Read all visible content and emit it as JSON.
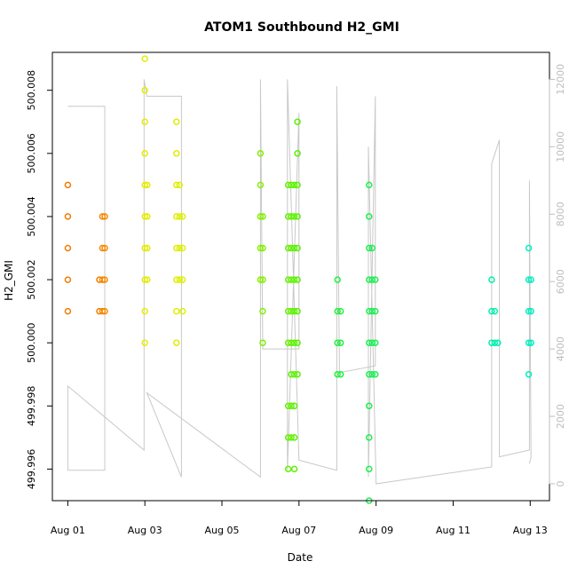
{
  "chart_data": {
    "type": "scatter",
    "title": "ATOM1 Southbound H2_GMI",
    "xlabel": "Date",
    "ylabel": "H2_GMI",
    "x_ticks": [
      "Aug 01",
      "Aug 03",
      "Aug 05",
      "Aug 07",
      "Aug 09",
      "Aug 11",
      "Aug 13"
    ],
    "x_tick_days": [
      1,
      3,
      5,
      7,
      9,
      11,
      13
    ],
    "xlim_days": [
      0.6,
      13.5
    ],
    "ylim": [
      499.995,
      500.0092
    ],
    "y_ticks": [
      "499.996",
      "499.998",
      "500.000",
      "500.002",
      "500.004",
      "500.006",
      "500.008"
    ],
    "y_tick_values": [
      499.996,
      499.998,
      500.0,
      500.002,
      500.004,
      500.006,
      500.008
    ],
    "y2_ticks": [
      "0",
      "2000",
      "4000",
      "6000",
      "8000",
      "10000",
      "12000"
    ],
    "y2_tick_values": [
      0,
      2000,
      4000,
      6000,
      8000,
      10000,
      12000
    ],
    "y2lim": [
      -500,
      12800
    ],
    "y2_color": "#bdbdbd",
    "grid": false,
    "point_groups": [
      {
        "day": 1.0,
        "color": "#f07b00",
        "y": [
          500.001,
          500.002,
          500.003,
          500.004,
          500.005
        ]
      },
      {
        "day": 1.82,
        "color": "#f07b00",
        "y": [
          500.001,
          500.002
        ]
      },
      {
        "day": 1.9,
        "color": "#f38a00",
        "y": [
          500.001,
          500.002,
          500.003,
          500.004
        ]
      },
      {
        "day": 1.96,
        "color": "#f38a00",
        "y": [
          500.001,
          500.002,
          500.003,
          500.004
        ]
      },
      {
        "day": 3.0,
        "color": "#e6ec00",
        "y": [
          500.0,
          500.001,
          500.002,
          500.003,
          500.004,
          500.005,
          500.006,
          500.007,
          500.008,
          500.009
        ]
      },
      {
        "day": 3.06,
        "color": "#e0ee00",
        "y": [
          500.002,
          500.003,
          500.004,
          500.005
        ]
      },
      {
        "day": 3.82,
        "color": "#e0ee00",
        "y": [
          500.0,
          500.001,
          500.002,
          500.003,
          500.004,
          500.005,
          500.006,
          500.007
        ]
      },
      {
        "day": 3.9,
        "color": "#dcf000",
        "y": [
          500.002,
          500.003,
          500.004,
          500.005
        ]
      },
      {
        "day": 3.98,
        "color": "#dcf000",
        "y": [
          500.001,
          500.002,
          500.003,
          500.004
        ]
      },
      {
        "day": 6.0,
        "color": "#88f000",
        "y": [
          500.002,
          500.003,
          500.004,
          500.005,
          500.006
        ]
      },
      {
        "day": 6.06,
        "color": "#80f000",
        "y": [
          500.0,
          500.001,
          500.002,
          500.003,
          500.004
        ]
      },
      {
        "day": 6.72,
        "color": "#66f200",
        "y": [
          499.996,
          499.997,
          499.998,
          500.0,
          500.001,
          500.002,
          500.003,
          500.004,
          500.005
        ]
      },
      {
        "day": 6.8,
        "color": "#62f200",
        "y": [
          499.997,
          499.998,
          499.999,
          500.0,
          500.001,
          500.002,
          500.003,
          500.004,
          500.005
        ]
      },
      {
        "day": 6.88,
        "color": "#5cf200",
        "y": [
          499.996,
          499.997,
          499.998,
          499.999,
          500.0,
          500.001,
          500.002,
          500.003,
          500.004,
          500.005
        ]
      },
      {
        "day": 6.96,
        "color": "#58f200",
        "y": [
          499.999,
          500.0,
          500.001,
          500.002,
          500.003,
          500.004,
          500.005,
          500.006,
          500.007
        ]
      },
      {
        "day": 8.0,
        "color": "#22f040",
        "y": [
          499.999,
          500.0,
          500.001,
          500.002
        ]
      },
      {
        "day": 8.08,
        "color": "#22f040",
        "y": [
          499.999,
          500.0,
          500.001
        ]
      },
      {
        "day": 8.82,
        "color": "#20ee50",
        "y": [
          499.995,
          499.996,
          499.997,
          499.998,
          499.999,
          500.0,
          500.001,
          500.002,
          500.003,
          500.004,
          500.005
        ]
      },
      {
        "day": 8.9,
        "color": "#1eee58",
        "y": [
          499.999,
          500.0,
          500.001,
          500.002,
          500.003
        ]
      },
      {
        "day": 8.98,
        "color": "#1eee58",
        "y": [
          499.999,
          500.0,
          500.001,
          500.002
        ]
      },
      {
        "day": 12.0,
        "color": "#00f0a8",
        "y": [
          500.0,
          500.001,
          500.002
        ]
      },
      {
        "day": 12.08,
        "color": "#00f0b0",
        "y": [
          500.0,
          500.001
        ]
      },
      {
        "day": 12.16,
        "color": "#00f0b0",
        "y": [
          500.0
        ]
      },
      {
        "day": 12.96,
        "color": "#00f0c0",
        "y": [
          499.999,
          500.0,
          500.001,
          500.002,
          500.003
        ]
      },
      {
        "day": 13.02,
        "color": "#00f0c0",
        "y": [
          500.0,
          500.001,
          500.002
        ]
      }
    ],
    "y2_trace": {
      "color": "#c8c8c8",
      "points": [
        [
          1.0,
          11200
        ],
        [
          1.96,
          11200
        ],
        [
          1.96,
          400
        ],
        [
          1.0,
          400
        ],
        [
          1.0,
          2900
        ],
        [
          2.98,
          1000
        ],
        [
          2.98,
          12000
        ],
        [
          3.05,
          11500
        ],
        [
          3.95,
          11500
        ],
        [
          3.95,
          200
        ],
        [
          3.05,
          2700
        ],
        [
          6.0,
          200
        ],
        [
          6.0,
          12000
        ],
        [
          6.06,
          4000
        ],
        [
          7.0,
          4000
        ],
        [
          7.0,
          11000
        ],
        [
          6.7,
          400
        ],
        [
          6.7,
          12000
        ],
        [
          7.0,
          700
        ],
        [
          7.98,
          400
        ],
        [
          7.98,
          11800
        ],
        [
          8.05,
          3300
        ],
        [
          8.98,
          3500
        ],
        [
          8.98,
          11500
        ],
        [
          8.8,
          200
        ],
        [
          8.8,
          10000
        ],
        [
          9.0,
          0
        ],
        [
          12.0,
          500
        ],
        [
          12.0,
          9500
        ],
        [
          12.2,
          10200
        ],
        [
          12.2,
          800
        ],
        [
          12.98,
          1000
        ],
        [
          12.98,
          9000
        ],
        [
          13.02,
          800
        ],
        [
          12.98,
          600
        ]
      ]
    }
  }
}
